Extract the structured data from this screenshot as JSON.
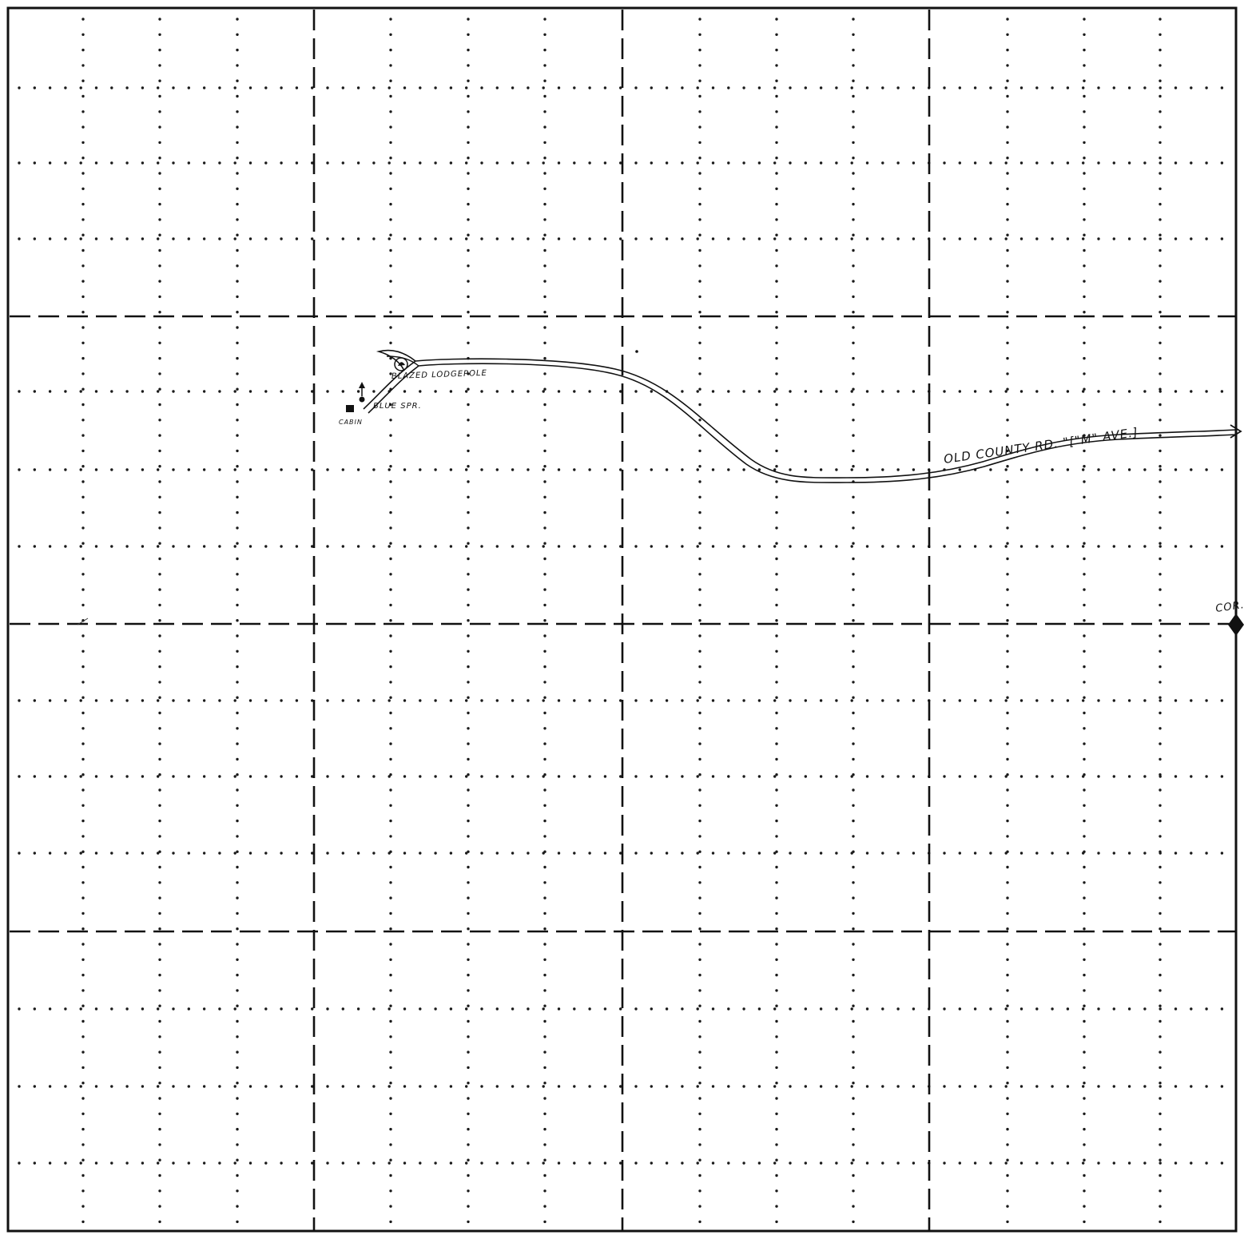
{
  "colors": {
    "paper": "#ffffff",
    "ink": "#111111",
    "grid_dot": "#1a1a1a",
    "section_line": "#111111"
  },
  "map": {
    "labels": {
      "blazed_lodgepole": "BLAZED LODGEPOLE",
      "blue_spring": "BLUE SPR.",
      "cabin": "CABIN",
      "old_county_road": "OLD COUNTY RD. \"[\"M\" AVE.]",
      "corner": "COR."
    },
    "symbols": {
      "cabin": "filled-square",
      "blue_spring": "spring-dot",
      "blazed_lodgepole": "circled-tree",
      "corner": "diamond-marker",
      "road_end": "arrow"
    }
  }
}
